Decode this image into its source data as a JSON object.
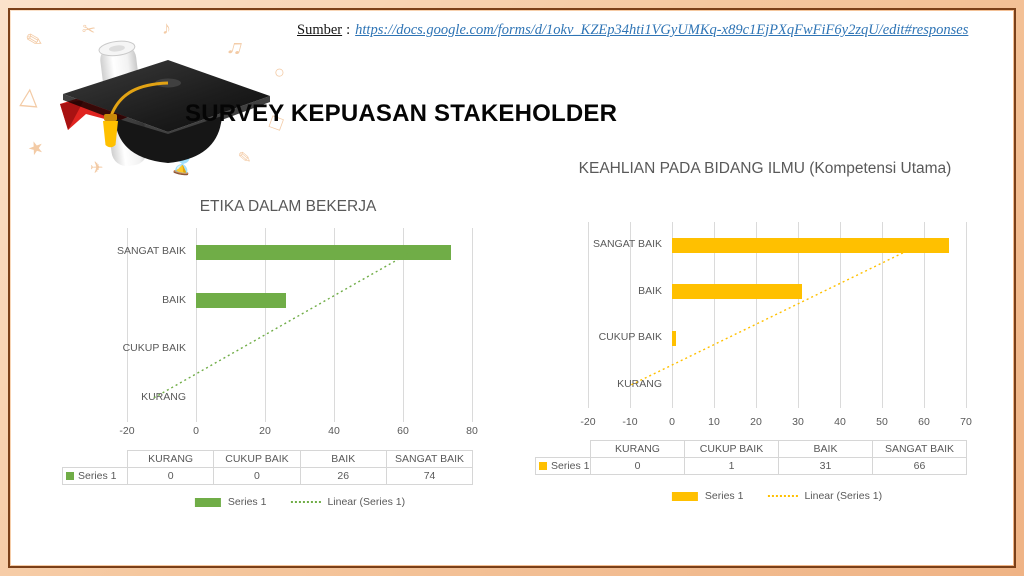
{
  "header": {
    "source_label": "Sumber",
    "source_sep": ":",
    "source_url": "https://docs.google.com/forms/d/1okv_KZEp34hti1VGyUMKq-x89c1EjPXqFwFiF6y2zqU/edit#responses",
    "title": "SURVEY KEPUASAN STAKEHOLDER"
  },
  "decor": {
    "graduation_image": "graduation-cap-with-diploma-and-red-ribbon",
    "doodles": [
      "✎",
      "✂",
      "♪",
      "♫",
      "○",
      "△",
      "□",
      "★",
      "✈",
      "⌛"
    ]
  },
  "colors": {
    "border_outer": "#f5c79e",
    "border_line": "#7b4019",
    "green": "#70AD47",
    "yellow": "#FFC000",
    "link": "#2e74b5",
    "chart_text": "#595959",
    "grid": "#dadada"
  },
  "chart_data": [
    {
      "type": "bar",
      "orientation": "horizontal",
      "title": "ETIKA DALAM BEKERJA",
      "categories": [
        "KURANG",
        "CUKUP BAIK",
        "BAIK",
        "SANGAT BAIK"
      ],
      "series": [
        {
          "name": "Series 1",
          "values": [
            0,
            0,
            26,
            74
          ]
        }
      ],
      "color": "#70AD47",
      "trendline": {
        "label": "Linear (Series 1)",
        "style": "dotted"
      },
      "xaxis": {
        "min": -20,
        "max": 80,
        "step": 20,
        "ticks": [
          -20,
          0,
          20,
          40,
          60,
          80
        ]
      },
      "grid": true,
      "legend_position": "bottom",
      "data_table": true
    },
    {
      "type": "bar",
      "orientation": "horizontal",
      "title": "KEAHLIAN PADA BIDANG ILMU (Kompetensi Utama)",
      "categories": [
        "KURANG",
        "CUKUP BAIK",
        "BAIK",
        "SANGAT BAIK"
      ],
      "series": [
        {
          "name": "Series 1",
          "values": [
            0,
            1,
            31,
            66
          ]
        }
      ],
      "color": "#FFC000",
      "trendline": {
        "label": "Linear (Series 1)",
        "style": "dotted"
      },
      "xaxis": {
        "min": -20,
        "max": 70,
        "step": 10,
        "ticks": [
          -20,
          -10,
          0,
          10,
          20,
          30,
          40,
          50,
          60,
          70
        ]
      },
      "grid": true,
      "legend_position": "bottom",
      "data_table": true
    }
  ]
}
